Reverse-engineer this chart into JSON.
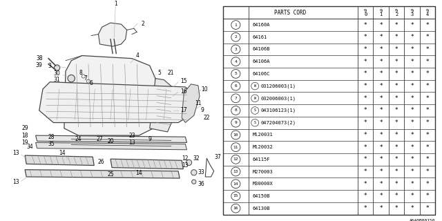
{
  "bg_color": "#ffffff",
  "col_headers": [
    "9\n0",
    "9\n1",
    "9\n2",
    "9\n3",
    "9\n4"
  ],
  "parts": [
    {
      "num": 1,
      "code": "64160A",
      "prefix": ""
    },
    {
      "num": 2,
      "code": "64161",
      "prefix": ""
    },
    {
      "num": 3,
      "code": "64106B",
      "prefix": ""
    },
    {
      "num": 4,
      "code": "64106A",
      "prefix": ""
    },
    {
      "num": 5,
      "code": "64106C",
      "prefix": ""
    },
    {
      "num": 6,
      "code": "031206003(1)",
      "prefix": "W"
    },
    {
      "num": 7,
      "code": "032006003(1)",
      "prefix": "W"
    },
    {
      "num": 8,
      "code": "043106123(1)",
      "prefix": "S"
    },
    {
      "num": 9,
      "code": "047204073(2)",
      "prefix": "S"
    },
    {
      "num": 10,
      "code": "Ml20031",
      "prefix": ""
    },
    {
      "num": 11,
      "code": "Ml20032",
      "prefix": ""
    },
    {
      "num": 12,
      "code": "64115F",
      "prefix": ""
    },
    {
      "num": 13,
      "code": "M270003",
      "prefix": ""
    },
    {
      "num": 14,
      "code": "M30000X",
      "prefix": ""
    },
    {
      "num": 15,
      "code": "64150B",
      "prefix": ""
    },
    {
      "num": 16,
      "code": "64130B",
      "prefix": ""
    }
  ],
  "footer": "A640B00150",
  "text_color": "#000000",
  "line_color": "#333333"
}
